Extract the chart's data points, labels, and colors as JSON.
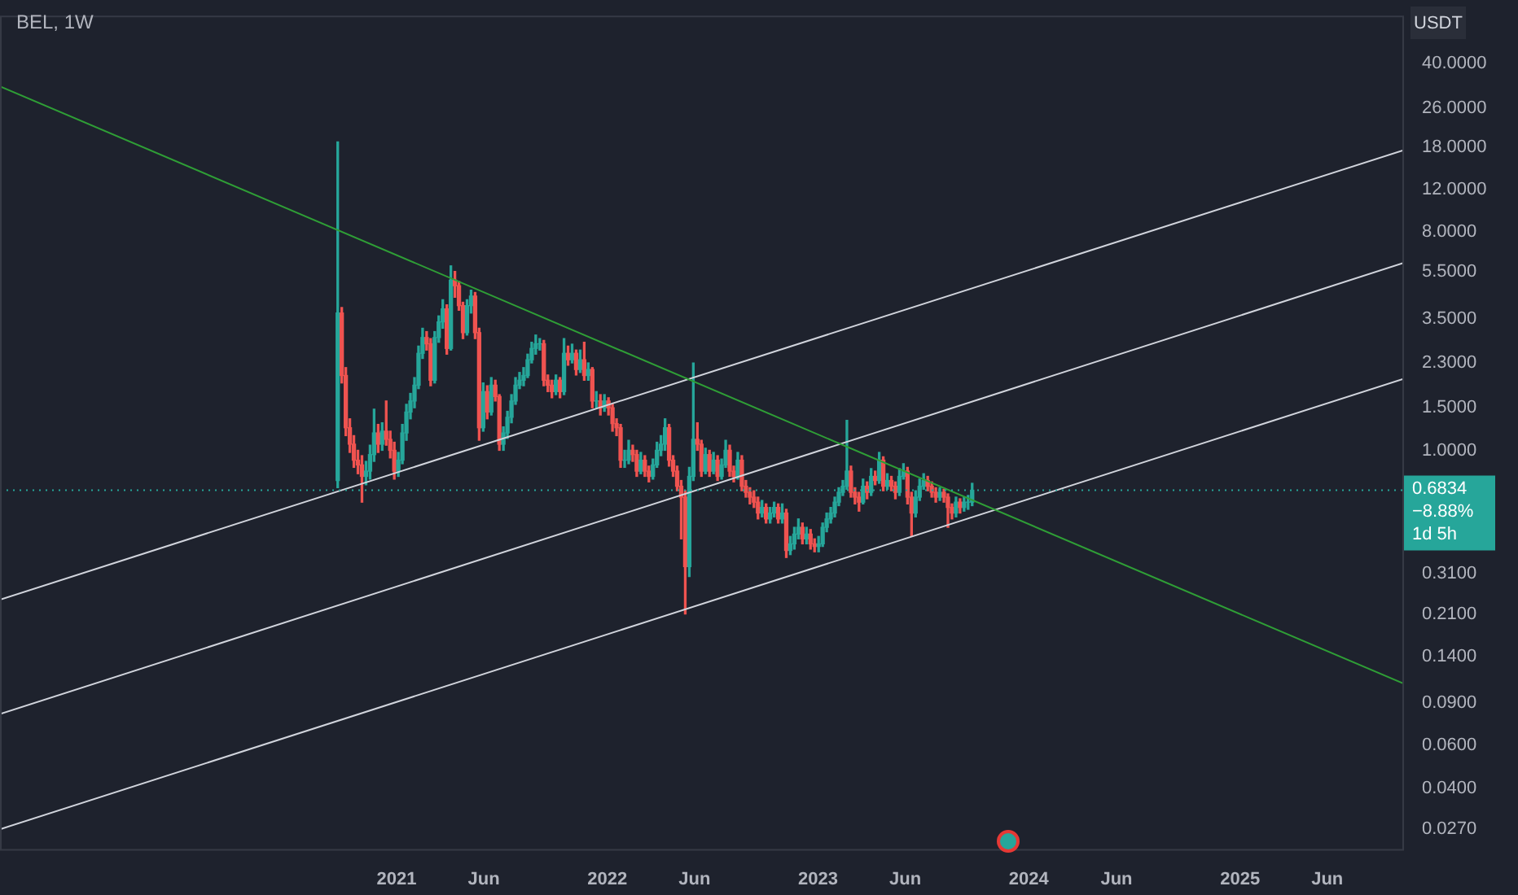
{
  "chart_data": {
    "type": "candlestick",
    "title": "BEL, 1W",
    "ylabel": "USDT",
    "log": true,
    "xlim": [
      "2019-02-14",
      "2025-10-12"
    ],
    "xticks": [
      {
        "value": "2021-01-01",
        "label": "2021"
      },
      {
        "value": "2021-06-01",
        "label": "Jun"
      },
      {
        "value": "2022-01-01",
        "label": "2022"
      },
      {
        "value": "2022-06-01",
        "label": "Jun"
      },
      {
        "value": "2023-01-01",
        "label": "2023"
      },
      {
        "value": "2023-06-01",
        "label": "Jun"
      },
      {
        "value": "2024-01-01",
        "label": "2024"
      },
      {
        "value": "2024-06-01",
        "label": "Jun"
      },
      {
        "value": "2025-01-01",
        "label": "2025"
      },
      {
        "value": "2025-06-01",
        "label": "Jun"
      }
    ],
    "ylim": [
      0.022,
      63
    ],
    "yticks": [
      {
        "value": 0.027,
        "label": "0.0270"
      },
      {
        "value": 0.04,
        "label": "0.0400"
      },
      {
        "value": 0.06,
        "label": "0.0600"
      },
      {
        "value": 0.09,
        "label": "0.0900"
      },
      {
        "value": 0.14,
        "label": "0.1400"
      },
      {
        "value": 0.21,
        "label": "0.2100"
      },
      {
        "value": 0.31,
        "label": "0.3100"
      },
      {
        "value": 1,
        "label": "1.0000"
      },
      {
        "value": 1.5,
        "label": "1.5000"
      },
      {
        "value": 2.3,
        "label": "2.3000"
      },
      {
        "value": 3.5,
        "label": "3.5000"
      },
      {
        "value": 5.5,
        "label": "5.5000"
      },
      {
        "value": 8,
        "label": "8.0000"
      },
      {
        "value": 12,
        "label": "12.0000"
      },
      {
        "value": 18,
        "label": "18.0000"
      },
      {
        "value": 26,
        "label": "26.0000"
      },
      {
        "value": 40,
        "label": "40.0000"
      }
    ],
    "x": [
      "2020-09-21",
      "2020-09-28",
      "2020-10-05",
      "2020-10-12",
      "2020-10-19",
      "2020-10-26",
      "2020-11-02",
      "2020-11-09",
      "2020-11-16",
      "2020-11-23",
      "2020-11-30",
      "2020-12-07",
      "2020-12-14",
      "2020-12-21",
      "2020-12-28",
      "2021-01-04",
      "2021-01-11",
      "2021-01-18",
      "2021-01-25",
      "2021-02-01",
      "2021-02-08",
      "2021-02-15",
      "2021-02-22",
      "2021-03-01",
      "2021-03-08",
      "2021-03-15",
      "2021-03-22",
      "2021-03-29",
      "2021-04-05",
      "2021-04-12",
      "2021-04-19",
      "2021-04-26",
      "2021-05-03",
      "2021-05-10",
      "2021-05-17",
      "2021-05-24",
      "2021-05-31",
      "2021-06-07",
      "2021-06-14",
      "2021-06-21",
      "2021-06-28",
      "2021-07-05",
      "2021-07-12",
      "2021-07-19",
      "2021-07-26",
      "2021-08-02",
      "2021-08-09",
      "2021-08-16",
      "2021-08-23",
      "2021-08-30",
      "2021-09-06",
      "2021-09-13",
      "2021-09-20",
      "2021-09-27",
      "2021-10-04",
      "2021-10-11",
      "2021-10-18",
      "2021-10-25",
      "2021-11-01",
      "2021-11-08",
      "2021-11-15",
      "2021-11-22",
      "2021-11-29",
      "2021-12-06",
      "2021-12-13",
      "2021-12-20",
      "2021-12-27",
      "2022-01-03",
      "2022-01-10",
      "2022-01-17",
      "2022-01-24",
      "2022-01-31",
      "2022-02-07",
      "2022-02-14",
      "2022-02-21",
      "2022-02-28",
      "2022-03-07",
      "2022-03-14",
      "2022-03-21",
      "2022-03-28",
      "2022-04-04",
      "2022-04-11",
      "2022-04-18",
      "2022-04-25",
      "2022-05-02",
      "2022-05-09",
      "2022-05-16",
      "2022-05-23",
      "2022-05-30",
      "2022-06-06",
      "2022-06-13",
      "2022-06-20",
      "2022-06-27",
      "2022-07-04",
      "2022-07-11",
      "2022-07-18",
      "2022-07-25",
      "2022-08-01",
      "2022-08-08",
      "2022-08-15",
      "2022-08-22",
      "2022-08-29",
      "2022-09-05",
      "2022-09-12",
      "2022-09-19",
      "2022-09-26",
      "2022-10-03",
      "2022-10-10",
      "2022-10-17",
      "2022-10-24",
      "2022-10-31",
      "2022-11-07",
      "2022-11-14",
      "2022-11-21",
      "2022-11-28",
      "2022-12-05",
      "2022-12-12",
      "2022-12-19",
      "2022-12-26",
      "2023-01-02",
      "2023-01-09",
      "2023-01-16",
      "2023-01-23",
      "2023-01-30",
      "2023-02-06",
      "2023-02-13",
      "2023-02-20",
      "2023-02-27",
      "2023-03-06",
      "2023-03-13",
      "2023-03-20",
      "2023-03-27",
      "2023-04-03",
      "2023-04-10",
      "2023-04-17",
      "2023-04-24",
      "2023-05-01",
      "2023-05-08",
      "2023-05-15",
      "2023-05-22",
      "2023-05-29",
      "2023-06-05",
      "2023-06-12",
      "2023-06-19",
      "2023-06-26",
      "2023-07-03",
      "2023-07-10",
      "2023-07-17",
      "2023-07-24",
      "2023-07-31",
      "2023-08-07",
      "2023-08-14",
      "2023-08-21",
      "2023-08-28",
      "2023-09-04",
      "2023-09-11",
      "2023-09-18",
      "2023-09-25"
    ],
    "ohlc": [
      [
        0.75,
        18.9,
        0.7,
        3.7
      ],
      [
        3.7,
        3.9,
        1.9,
        2.04
      ],
      [
        2.04,
        2.2,
        1.15,
        1.24
      ],
      [
        1.24,
        1.35,
        0.98,
        1.06
      ],
      [
        1.06,
        1.15,
        0.85,
        0.91
      ],
      [
        0.91,
        1.0,
        0.8,
        0.87
      ],
      [
        0.87,
        0.95,
        0.61,
        0.78
      ],
      [
        0.78,
        0.9,
        0.72,
        0.82
      ],
      [
        0.82,
        1.05,
        0.76,
        0.96
      ],
      [
        0.96,
        1.48,
        0.9,
        1.18
      ],
      [
        1.18,
        1.28,
        0.98,
        1.06
      ],
      [
        1.06,
        1.3,
        1.0,
        1.2
      ],
      [
        1.2,
        1.6,
        1.05,
        1.11
      ],
      [
        1.11,
        1.2,
        0.93,
        1.0
      ],
      [
        1.0,
        1.08,
        0.76,
        0.82
      ],
      [
        0.82,
        0.98,
        0.78,
        0.91
      ],
      [
        0.91,
        1.28,
        0.88,
        1.18
      ],
      [
        1.18,
        1.55,
        1.1,
        1.44
      ],
      [
        1.44,
        1.72,
        1.35,
        1.6
      ],
      [
        1.6,
        2.0,
        1.5,
        1.86
      ],
      [
        1.86,
        2.7,
        1.8,
        2.52
      ],
      [
        2.52,
        3.2,
        2.4,
        2.93
      ],
      [
        2.93,
        3.1,
        2.6,
        2.76
      ],
      [
        2.76,
        2.9,
        1.85,
        1.95
      ],
      [
        1.95,
        3.1,
        1.9,
        2.93
      ],
      [
        2.93,
        3.6,
        2.8,
        3.4
      ],
      [
        3.4,
        4.2,
        3.2,
        3.85
      ],
      [
        3.85,
        4.0,
        2.5,
        2.64
      ],
      [
        2.64,
        5.8,
        2.6,
        5.06
      ],
      [
        5.06,
        5.5,
        4.3,
        4.8
      ],
      [
        4.8,
        5.0,
        3.8,
        3.97
      ],
      [
        3.97,
        4.1,
        2.9,
        3.07
      ],
      [
        3.07,
        4.2,
        3.0,
        3.97
      ],
      [
        3.97,
        4.6,
        3.7,
        4.35
      ],
      [
        4.35,
        4.5,
        2.9,
        3.07
      ],
      [
        3.07,
        3.2,
        1.1,
        1.24
      ],
      [
        1.24,
        1.9,
        1.2,
        1.75
      ],
      [
        1.75,
        1.85,
        1.35,
        1.44
      ],
      [
        1.44,
        2.0,
        1.4,
        1.86
      ],
      [
        1.86,
        1.95,
        1.6,
        1.67
      ],
      [
        1.67,
        1.7,
        1.0,
        1.06
      ],
      [
        1.06,
        1.25,
        1.0,
        1.18
      ],
      [
        1.18,
        1.45,
        1.12,
        1.37
      ],
      [
        1.37,
        1.7,
        1.3,
        1.6
      ],
      [
        1.6,
        2.0,
        1.55,
        1.86
      ],
      [
        1.86,
        2.1,
        1.8,
        1.95
      ],
      [
        1.95,
        2.2,
        1.85,
        2.04
      ],
      [
        2.04,
        2.5,
        2.0,
        2.37
      ],
      [
        2.37,
        2.8,
        2.3,
        2.64
      ],
      [
        2.64,
        3.0,
        2.5,
        2.76
      ],
      [
        2.76,
        2.9,
        2.6,
        2.76
      ],
      [
        2.76,
        2.85,
        1.85,
        1.95
      ],
      [
        1.95,
        2.05,
        1.75,
        1.86
      ],
      [
        1.86,
        1.95,
        1.65,
        1.75
      ],
      [
        1.75,
        2.05,
        1.7,
        1.95
      ],
      [
        1.95,
        2.0,
        1.65,
        1.75
      ],
      [
        1.75,
        2.9,
        1.7,
        2.52
      ],
      [
        2.52,
        2.7,
        2.25,
        2.37
      ],
      [
        2.37,
        2.75,
        2.3,
        2.52
      ],
      [
        2.52,
        2.6,
        2.05,
        2.16
      ],
      [
        2.16,
        2.6,
        2.1,
        2.37
      ],
      [
        2.37,
        2.8,
        1.95,
        2.04
      ],
      [
        2.04,
        2.3,
        1.95,
        2.16
      ],
      [
        2.16,
        2.2,
        1.5,
        1.6
      ],
      [
        1.6,
        1.75,
        1.5,
        1.6
      ],
      [
        1.6,
        1.7,
        1.4,
        1.5
      ],
      [
        1.5,
        1.7,
        1.45,
        1.6
      ],
      [
        1.6,
        1.65,
        1.4,
        1.5
      ],
      [
        1.5,
        1.55,
        1.2,
        1.29
      ],
      [
        1.29,
        1.35,
        1.15,
        1.24
      ],
      [
        1.24,
        1.28,
        0.85,
        0.91
      ],
      [
        0.91,
        1.0,
        0.85,
        0.91
      ],
      [
        0.91,
        1.1,
        0.88,
        1.0
      ],
      [
        1.0,
        1.05,
        0.9,
        0.96
      ],
      [
        0.96,
        1.0,
        0.78,
        0.82
      ],
      [
        0.82,
        0.98,
        0.8,
        0.91
      ],
      [
        0.91,
        0.95,
        0.78,
        0.82
      ],
      [
        0.82,
        0.86,
        0.74,
        0.78
      ],
      [
        0.78,
        0.92,
        0.76,
        0.87
      ],
      [
        0.87,
        1.08,
        0.85,
        1.0
      ],
      [
        1.0,
        1.15,
        0.95,
        1.06
      ],
      [
        1.06,
        1.35,
        1.0,
        1.24
      ],
      [
        1.24,
        1.28,
        0.86,
        0.91
      ],
      [
        0.91,
        0.95,
        0.78,
        0.82
      ],
      [
        0.82,
        0.86,
        0.68,
        0.71
      ],
      [
        0.71,
        0.75,
        0.43,
        0.64
      ],
      [
        0.64,
        0.68,
        0.21,
        0.33
      ],
      [
        0.33,
        0.85,
        0.3,
        0.78
      ],
      [
        0.78,
        2.3,
        0.75,
        1.11
      ],
      [
        1.11,
        1.3,
        1.0,
        1.06
      ],
      [
        1.06,
        1.1,
        0.78,
        0.82
      ],
      [
        0.82,
        1.02,
        0.8,
        0.96
      ],
      [
        0.96,
        1.0,
        0.78,
        0.82
      ],
      [
        0.82,
        0.98,
        0.8,
        0.91
      ],
      [
        0.91,
        0.95,
        0.75,
        0.78
      ],
      [
        0.78,
        0.92,
        0.76,
        0.87
      ],
      [
        0.87,
        1.1,
        0.85,
        1.0
      ],
      [
        1.0,
        1.05,
        0.78,
        0.82
      ],
      [
        0.82,
        0.86,
        0.74,
        0.78
      ],
      [
        0.78,
        0.98,
        0.76,
        0.91
      ],
      [
        0.91,
        0.95,
        0.68,
        0.71
      ],
      [
        0.71,
        0.75,
        0.64,
        0.67
      ],
      [
        0.67,
        0.7,
        0.6,
        0.64
      ],
      [
        0.64,
        0.68,
        0.58,
        0.61
      ],
      [
        0.61,
        0.64,
        0.52,
        0.55
      ],
      [
        0.55,
        0.62,
        0.53,
        0.58
      ],
      [
        0.58,
        0.6,
        0.5,
        0.52
      ],
      [
        0.52,
        0.58,
        0.5,
        0.55
      ],
      [
        0.55,
        0.61,
        0.53,
        0.58
      ],
      [
        0.58,
        0.6,
        0.5,
        0.52
      ],
      [
        0.52,
        0.6,
        0.5,
        0.55
      ],
      [
        0.55,
        0.57,
        0.36,
        0.385
      ],
      [
        0.385,
        0.44,
        0.37,
        0.41
      ],
      [
        0.41,
        0.48,
        0.39,
        0.45
      ],
      [
        0.45,
        0.52,
        0.43,
        0.48
      ],
      [
        0.48,
        0.5,
        0.41,
        0.43
      ],
      [
        0.43,
        0.48,
        0.41,
        0.45
      ],
      [
        0.45,
        0.47,
        0.39,
        0.41
      ],
      [
        0.41,
        0.43,
        0.38,
        0.4
      ],
      [
        0.4,
        0.44,
        0.38,
        0.41
      ],
      [
        0.41,
        0.5,
        0.4,
        0.48
      ],
      [
        0.48,
        0.55,
        0.46,
        0.52
      ],
      [
        0.52,
        0.58,
        0.5,
        0.55
      ],
      [
        0.55,
        0.64,
        0.53,
        0.61
      ],
      [
        0.61,
        0.7,
        0.59,
        0.67
      ],
      [
        0.67,
        0.75,
        0.65,
        0.71
      ],
      [
        0.71,
        1.33,
        0.69,
        0.82
      ],
      [
        0.82,
        0.86,
        0.64,
        0.67
      ],
      [
        0.67,
        0.7,
        0.6,
        0.64
      ],
      [
        0.64,
        0.67,
        0.56,
        0.61
      ],
      [
        0.61,
        0.76,
        0.6,
        0.71
      ],
      [
        0.71,
        0.74,
        0.63,
        0.67
      ],
      [
        0.67,
        0.84,
        0.65,
        0.78
      ],
      [
        0.78,
        0.82,
        0.72,
        0.75
      ],
      [
        0.75,
        0.98,
        0.73,
        0.91
      ],
      [
        0.91,
        0.94,
        0.68,
        0.71
      ],
      [
        0.71,
        0.8,
        0.69,
        0.75
      ],
      [
        0.75,
        0.78,
        0.68,
        0.71
      ],
      [
        0.71,
        0.74,
        0.63,
        0.67
      ],
      [
        0.67,
        0.84,
        0.65,
        0.78
      ],
      [
        0.78,
        0.88,
        0.76,
        0.82
      ],
      [
        0.82,
        0.85,
        0.6,
        0.64
      ],
      [
        0.64,
        0.67,
        0.44,
        0.55
      ],
      [
        0.55,
        0.68,
        0.53,
        0.64
      ],
      [
        0.64,
        0.76,
        0.62,
        0.71
      ],
      [
        0.71,
        0.8,
        0.69,
        0.75
      ],
      [
        0.75,
        0.78,
        0.68,
        0.71
      ],
      [
        0.71,
        0.74,
        0.64,
        0.67
      ],
      [
        0.67,
        0.7,
        0.61,
        0.64
      ],
      [
        0.64,
        0.7,
        0.62,
        0.67
      ],
      [
        0.67,
        0.69,
        0.61,
        0.64
      ],
      [
        0.64,
        0.66,
        0.48,
        0.58
      ],
      [
        0.58,
        0.6,
        0.52,
        0.55
      ],
      [
        0.55,
        0.64,
        0.53,
        0.61
      ],
      [
        0.61,
        0.63,
        0.55,
        0.58
      ],
      [
        0.58,
        0.64,
        0.56,
        0.61
      ],
      [
        0.61,
        0.65,
        0.57,
        0.61
      ],
      [
        0.61,
        0.73,
        0.59,
        0.6834
      ]
    ],
    "series": [
      {
        "type": "line",
        "color": "#2f9e36",
        "x": [
          "2019-02-14",
          "2025-10-12"
        ],
        "values": [
          32.1,
          0.108
        ]
      },
      {
        "type": "line",
        "color": "#d1d4dc",
        "x": [
          "2019-02-14",
          "2025-10-12"
        ],
        "values": [
          0.241,
          17.5
        ]
      },
      {
        "type": "line",
        "color": "#d1d4dc",
        "x": [
          "2019-02-14",
          "2025-10-12"
        ],
        "values": [
          0.081,
          5.97
        ]
      },
      {
        "type": "line",
        "color": "#d1d4dc",
        "x": [
          "2019-02-14",
          "2025-10-12"
        ],
        "values": [
          0.027,
          1.98
        ]
      }
    ],
    "ref_lines": [
      {
        "axis": "y",
        "value": 0.6834,
        "label": "0.6834",
        "color": "#26a69a",
        "line_style": "dotted"
      }
    ],
    "annotations": [
      "−8.88%",
      "1d 5h"
    ]
  }
}
